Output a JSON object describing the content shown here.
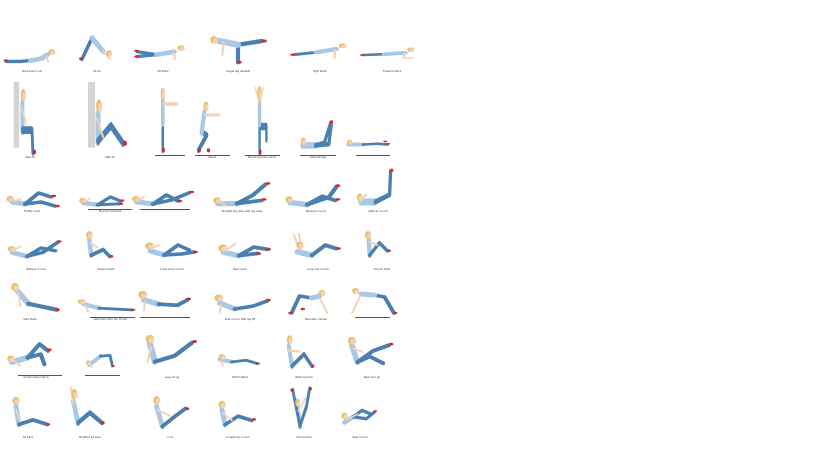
{
  "sheet": {
    "rows": [
      {
        "exercises": [
          {
            "id": "e1",
            "pose": "prone-cobra",
            "label": "Knee touch curl"
          },
          {
            "id": "e2",
            "pose": "downdog",
            "label": "Sit Up"
          },
          {
            "id": "e3",
            "pose": "plank-leg",
            "label": "V8 Plank"
          },
          {
            "id": "e4",
            "pose": "single-deadlift",
            "label": "Single leg deadlift"
          },
          {
            "id": "e5",
            "pose": "plank",
            "label": "High Plank"
          },
          {
            "id": "e6",
            "pose": "forearm-plank",
            "label": "Forearm Plank"
          }
        ]
      },
      {
        "exercises": [
          {
            "id": "e7",
            "pose": "wall-sit",
            "label": "Wall sit"
          },
          {
            "id": "e8",
            "pose": "wall-floor",
            "label": "Wall sit"
          },
          {
            "id": "e9",
            "pose": "standing-arms",
            "label": ""
          },
          {
            "id": "e10",
            "pose": "squat",
            "label": "Squat"
          },
          {
            "id": "e11",
            "pose": "standing-knee",
            "label": "Standing knee crunch"
          },
          {
            "id": "e12",
            "pose": "legs-up",
            "label": "Glute bridge"
          },
          {
            "id": "e13",
            "pose": "lying-flat",
            "label": ""
          }
        ]
      },
      {
        "exercises": [
          {
            "id": "e14",
            "pose": "crunch-legs",
            "label": "Flutter kicks"
          },
          {
            "id": "e15",
            "pose": "bicycle",
            "label": "Bicycle Crunches"
          },
          {
            "id": "e16",
            "pose": "bicycle2",
            "label": ""
          },
          {
            "id": "e17",
            "pose": "lying-leg-raise",
            "label": "Straight leg raise with leg raise"
          },
          {
            "id": "e18",
            "pose": "bent-kick",
            "label": "Reverse crunch"
          },
          {
            "id": "e19",
            "pose": "vertical-leg",
            "label": "Vertical crunch"
          }
        ]
      },
      {
        "exercises": [
          {
            "id": "e20",
            "pose": "oblique",
            "label": "Oblique crunch"
          },
          {
            "id": "e21",
            "pose": "seated-twist",
            "label": "Russian twist"
          },
          {
            "id": "e22",
            "pose": "cross-crunch",
            "label": "Cross body crunch"
          },
          {
            "id": "e23",
            "pose": "tap-crunch",
            "label": "Heel touch"
          },
          {
            "id": "e24",
            "pose": "reach-crunch",
            "label": "Long arm crunch"
          },
          {
            "id": "e25",
            "pose": "tuck-seated",
            "label": "Crunch Twist"
          }
        ]
      },
      {
        "exercises": [
          {
            "id": "e26",
            "pose": "side-plank",
            "label": "Side Plank"
          },
          {
            "id": "e27",
            "pose": "side-plank-reach",
            "label": "Side Plank with hip Thrust"
          },
          {
            "id": "e28",
            "pose": "prone-twist",
            "label": ""
          },
          {
            "id": "e29",
            "pose": "side-lean",
            "label": "Side crunch with leg lift"
          },
          {
            "id": "e30",
            "pose": "spider",
            "label": "Mountain climber"
          },
          {
            "id": "e31",
            "pose": "spider2",
            "label": ""
          }
        ]
      },
      {
        "exercises": [
          {
            "id": "e32",
            "pose": "hip-lift",
            "label": "Glute bridge march"
          },
          {
            "id": "e33",
            "pose": "bridge",
            "label": ""
          },
          {
            "id": "e34",
            "pose": "leg-lift-seat",
            "label": "Leg pull up"
          },
          {
            "id": "e35",
            "pose": "side-rest",
            "label": "Hold bottom"
          },
          {
            "id": "e36",
            "pose": "seated-tuck",
            "label": "Wide leg tuck"
          },
          {
            "id": "e37",
            "pose": "legs-crunch",
            "label": "Rear kick up"
          }
        ]
      },
      {
        "exercises": [
          {
            "id": "e38",
            "pose": "sit-cross",
            "label": "Sit back"
          },
          {
            "id": "e39",
            "pose": "sit-reach",
            "label": "Modified sit back"
          },
          {
            "id": "e40",
            "pose": "v-sit",
            "label": "V sit"
          },
          {
            "id": "e41",
            "pose": "reverse-curl",
            "label": "Crossbody crunch"
          },
          {
            "id": "e42",
            "pose": "toe-touch",
            "label": "Toe touches"
          },
          {
            "id": "e43",
            "pose": "knee-hug",
            "label": "Heel crunch"
          }
        ]
      }
    ]
  },
  "colors": {
    "jeans": "#4a7fb0",
    "jeans_dark": "#2f5a86",
    "shirt": "#a9c8e6",
    "skin": "#f3d2b6",
    "hair": "#e8c26a",
    "shoe": "#d42a2a",
    "wall": "#d4d4d4",
    "outline": "#2a3a4a"
  }
}
